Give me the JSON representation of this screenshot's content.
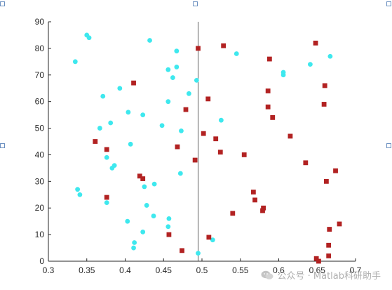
{
  "chart_data": {
    "type": "scatter",
    "xlim": [
      0.3,
      0.7
    ],
    "ylim": [
      0,
      90
    ],
    "xticks": [
      "0.3",
      "0.35",
      "0.4",
      "0.45",
      "0.5",
      "0.55",
      "0.6",
      "0.65",
      "0.7"
    ],
    "yticks": [
      "0",
      "10",
      "20",
      "30",
      "40",
      "50",
      "60",
      "70",
      "80",
      "90"
    ],
    "grid": false,
    "divider_x": 0.495,
    "series": [
      {
        "marker": "circle",
        "color": "#3ee8ee",
        "points": [
          [
            0.335,
            75
          ],
          [
            0.35,
            85
          ],
          [
            0.353,
            84
          ],
          [
            0.432,
            83
          ],
          [
            0.467,
            79
          ],
          [
            0.545,
            78
          ],
          [
            0.667,
            77
          ],
          [
            0.641,
            74
          ],
          [
            0.606,
            71
          ],
          [
            0.606,
            70
          ],
          [
            0.467,
            73
          ],
          [
            0.456,
            72
          ],
          [
            0.462,
            69
          ],
          [
            0.493,
            68
          ],
          [
            0.393,
            65
          ],
          [
            0.483,
            63
          ],
          [
            0.371,
            62
          ],
          [
            0.456,
            60
          ],
          [
            0.404,
            56
          ],
          [
            0.423,
            55
          ],
          [
            0.525,
            53
          ],
          [
            0.381,
            52
          ],
          [
            0.448,
            51
          ],
          [
            0.367,
            50
          ],
          [
            0.473,
            49
          ],
          [
            0.407,
            44
          ],
          [
            0.376,
            39
          ],
          [
            0.386,
            36
          ],
          [
            0.383,
            35
          ],
          [
            0.472,
            33
          ],
          [
            0.438,
            29
          ],
          [
            0.425,
            28
          ],
          [
            0.338,
            27
          ],
          [
            0.341,
            25
          ],
          [
            0.376,
            22
          ],
          [
            0.428,
            21
          ],
          [
            0.437,
            17
          ],
          [
            0.457,
            16
          ],
          [
            0.403,
            15
          ],
          [
            0.456,
            13
          ],
          [
            0.423,
            11
          ],
          [
            0.514,
            8
          ],
          [
            0.412,
            7
          ],
          [
            0.411,
            5
          ],
          [
            0.495,
            3
          ]
        ]
      },
      {
        "marker": "square",
        "color": "#b22222",
        "points": [
          [
            0.648,
            82
          ],
          [
            0.528,
            81
          ],
          [
            0.495,
            80
          ],
          [
            0.588,
            76
          ],
          [
            0.411,
            67
          ],
          [
            0.66,
            66
          ],
          [
            0.586,
            64
          ],
          [
            0.508,
            61
          ],
          [
            0.659,
            59
          ],
          [
            0.586,
            58
          ],
          [
            0.479,
            57
          ],
          [
            0.592,
            54
          ],
          [
            0.502,
            48
          ],
          [
            0.615,
            47
          ],
          [
            0.518,
            46
          ],
          [
            0.361,
            45
          ],
          [
            0.468,
            43
          ],
          [
            0.376,
            42
          ],
          [
            0.524,
            41
          ],
          [
            0.555,
            40
          ],
          [
            0.491,
            38
          ],
          [
            0.635,
            37
          ],
          [
            0.674,
            34
          ],
          [
            0.419,
            32
          ],
          [
            0.423,
            31
          ],
          [
            0.662,
            30
          ],
          [
            0.567,
            26
          ],
          [
            0.376,
            24
          ],
          [
            0.569,
            23
          ],
          [
            0.58,
            20
          ],
          [
            0.579,
            19
          ],
          [
            0.54,
            18
          ],
          [
            0.679,
            14
          ],
          [
            0.666,
            12
          ],
          [
            0.457,
            10
          ],
          [
            0.509,
            9
          ],
          [
            0.665,
            6
          ],
          [
            0.474,
            4
          ],
          [
            0.665,
            2
          ],
          [
            0.649,
            1
          ],
          [
            0.652,
            0
          ]
        ]
      }
    ]
  },
  "watermark": {
    "text": "公众号 · Matlab科研助手",
    "icon": "wechat-icon"
  }
}
